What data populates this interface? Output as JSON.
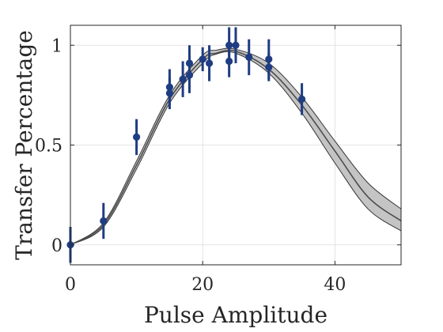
{
  "chart_data": {
    "type": "scatter",
    "title": "",
    "xlabel": "Pulse Amplitude",
    "ylabel": "Transfer Percentage",
    "xlim": [
      0,
      50
    ],
    "ylim": [
      -0.1,
      1.1
    ],
    "x_ticks": [
      0,
      20,
      40
    ],
    "x_tick_labels": [
      "0",
      "20",
      "40"
    ],
    "y_ticks": [
      0,
      0.5,
      1
    ],
    "y_tick_labels": [
      "0",
      "0.5",
      "1"
    ],
    "grid": true,
    "legend": "none",
    "series": [
      {
        "type": "scatter_errorbar",
        "color": "#1f3d82",
        "points": [
          {
            "x": 0,
            "y": 0.0,
            "err": 0.09
          },
          {
            "x": 5,
            "y": 0.12,
            "err": 0.09
          },
          {
            "x": 10,
            "y": 0.54,
            "err": 0.09
          },
          {
            "x": 15,
            "y": 0.76,
            "err": 0.08
          },
          {
            "x": 15,
            "y": 0.79,
            "err": 0.09
          },
          {
            "x": 17,
            "y": 0.83,
            "err": 0.09
          },
          {
            "x": 18,
            "y": 0.85,
            "err": 0.09
          },
          {
            "x": 18,
            "y": 0.91,
            "err": 0.09
          },
          {
            "x": 20,
            "y": 0.93,
            "err": 0.06
          },
          {
            "x": 21,
            "y": 0.91,
            "err": 0.09
          },
          {
            "x": 24,
            "y": 0.92,
            "err": 0.08
          },
          {
            "x": 24,
            "y": 1.0,
            "err": 0.09
          },
          {
            "x": 25,
            "y": 1.0,
            "err": 0.09
          },
          {
            "x": 27,
            "y": 0.94,
            "err": 0.09
          },
          {
            "x": 30,
            "y": 0.89,
            "err": 0.07
          },
          {
            "x": 30,
            "y": 0.93,
            "err": 0.1
          },
          {
            "x": 35,
            "y": 0.73,
            "err": 0.08
          }
        ]
      },
      {
        "type": "fit_band",
        "fill_color": "#c4c4c4",
        "edge_color": "#333333",
        "line_color": "#4d4d4d",
        "points": [
          {
            "x": 0,
            "center": 0.0,
            "lower": 0.0,
            "upper": 0.0
          },
          {
            "x": 5,
            "center": 0.1,
            "lower": 0.09,
            "upper": 0.11
          },
          {
            "x": 10,
            "center": 0.4,
            "lower": 0.38,
            "upper": 0.42
          },
          {
            "x": 15,
            "center": 0.73,
            "lower": 0.71,
            "upper": 0.75
          },
          {
            "x": 20,
            "center": 0.93,
            "lower": 0.91,
            "upper": 0.95
          },
          {
            "x": 22,
            "center": 0.96,
            "lower": 0.955,
            "upper": 0.975
          },
          {
            "x": 25,
            "center": 0.97,
            "lower": 0.96,
            "upper": 0.98
          },
          {
            "x": 30,
            "center": 0.88,
            "lower": 0.86,
            "upper": 0.91
          },
          {
            "x": 35,
            "center": 0.7,
            "lower": 0.66,
            "upper": 0.74
          },
          {
            "x": 40,
            "center": 0.47,
            "lower": 0.41,
            "upper": 0.52
          },
          {
            "x": 45,
            "center": 0.24,
            "lower": 0.18,
            "upper": 0.31
          },
          {
            "x": 50,
            "center": 0.12,
            "lower": 0.07,
            "upper": 0.18
          }
        ]
      }
    ]
  }
}
